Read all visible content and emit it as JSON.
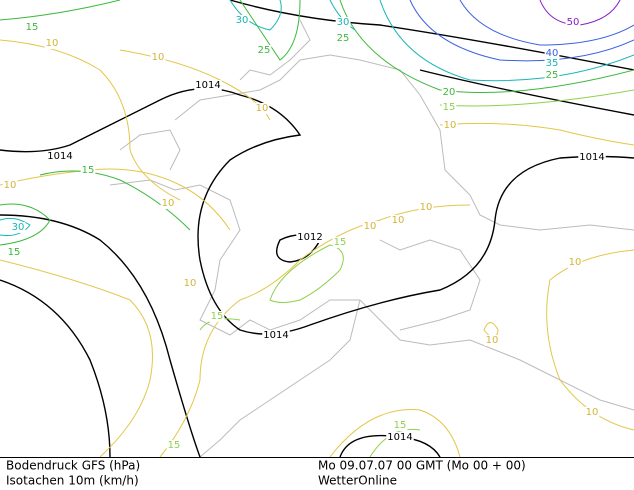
{
  "isobar_labels": [
    "1014",
    "1014",
    "1014",
    "1012",
    "1014",
    "1014"
  ],
  "isotach_labels": [
    "15",
    "10",
    "10",
    "30",
    "25",
    "30",
    "25",
    "10",
    "20",
    "15",
    "10",
    "40",
    "35",
    "25",
    "50",
    "15",
    "10",
    "10",
    "30",
    "15",
    "10",
    "10",
    "10",
    "15",
    "10",
    "15",
    "10",
    "10",
    "10",
    "15",
    "15"
  ],
  "footer": {
    "field": "Bodendruck GFS (hPa)",
    "overlay": "Isotachen 10m (km/h)",
    "time": "Mo 09.07.07 00 GMT (Mo 00 + 00)",
    "source": "WetterOnline"
  }
}
